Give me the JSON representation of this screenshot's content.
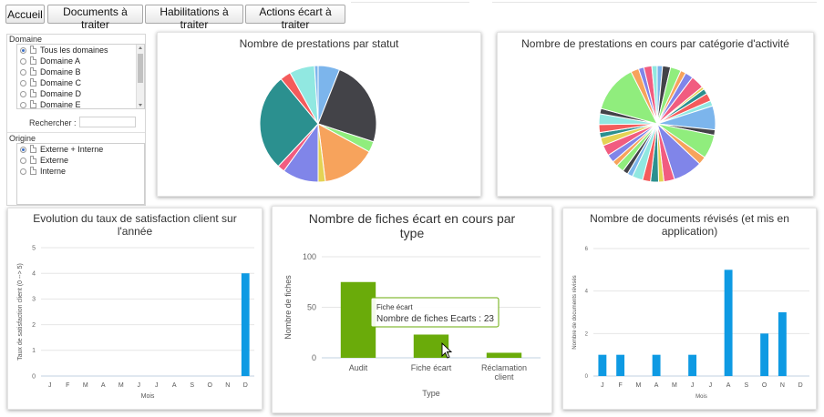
{
  "toolbar": {
    "buttons": [
      "Accueil",
      "Documents à traiter",
      "Habilitations à traiter",
      "Actions écart à traiter"
    ]
  },
  "filters": {
    "domaine_label": "Domaine",
    "domaines": [
      "Tous les domaines",
      "Domaine A",
      "Domaine B",
      "Domaine C",
      "Domaine D",
      "Domaine E"
    ],
    "selected_domaine": "Tous les domaines",
    "search_label": "Rechercher :",
    "search_value": "",
    "origine_label": "Origine",
    "origines": [
      "Externe + Interne",
      "Externe",
      "Interne"
    ],
    "selected_origine": "Externe + Interne"
  },
  "charts": {
    "statut": {
      "title": "Nombre de prestations par statut"
    },
    "categorie": {
      "title": "Nombre de prestations en cours par catégorie d'activité"
    },
    "satisfaction": {
      "title_line1": "Evolution du taux de satisfaction client sur",
      "title_line2": "l'année"
    },
    "fiches": {
      "title_line1": "Nombre de fiches écart en cours par",
      "title_line2": "type",
      "tooltip_header": "Fiche écart",
      "tooltip_body": "Nombre de fiches Ecarts : 23"
    },
    "documents": {
      "title_line1": "Nombre de documents révisés (et mis en",
      "title_line2": "application)"
    }
  },
  "chart_data": [
    {
      "type": "pie",
      "title": "Nombre de prestations par statut",
      "slices": [
        {
          "value": 6,
          "color": "#7cb5ec"
        },
        {
          "value": 24,
          "color": "#434348"
        },
        {
          "value": 3,
          "color": "#90ed7d"
        },
        {
          "value": 15,
          "color": "#f7a35c"
        },
        {
          "value": 2,
          "color": "#e4d354"
        },
        {
          "value": 10,
          "color": "#8085e9"
        },
        {
          "value": 2,
          "color": "#f15c80"
        },
        {
          "value": 27,
          "color": "#2b908f"
        },
        {
          "value": 3,
          "color": "#f45b5b"
        },
        {
          "value": 7,
          "color": "#91e8e1"
        },
        {
          "value": 1,
          "color": "#7cb5ec"
        }
      ]
    },
    {
      "type": "pie",
      "title": "Nombre de prestations en cours par catégorie d'activité",
      "slices": [
        {
          "value": 2,
          "color": "#7cb5ec"
        },
        {
          "value": 3,
          "color": "#434348"
        },
        {
          "value": 4,
          "color": "#90ed7d"
        },
        {
          "value": 2,
          "color": "#f7a35c"
        },
        {
          "value": 3,
          "color": "#8085e9"
        },
        {
          "value": 5,
          "color": "#f15c80"
        },
        {
          "value": 1,
          "color": "#e4d354"
        },
        {
          "value": 2,
          "color": "#2b908f"
        },
        {
          "value": 3,
          "color": "#f45b5b"
        },
        {
          "value": 2,
          "color": "#91e8e1"
        },
        {
          "value": 9,
          "color": "#7cb5ec"
        },
        {
          "value": 2,
          "color": "#434348"
        },
        {
          "value": 9,
          "color": "#90ed7d"
        },
        {
          "value": 3,
          "color": "#f7a35c"
        },
        {
          "value": 11,
          "color": "#8085e9"
        },
        {
          "value": 4,
          "color": "#f15c80"
        },
        {
          "value": 2,
          "color": "#e4d354"
        },
        {
          "value": 3,
          "color": "#2b908f"
        },
        {
          "value": 3,
          "color": "#f45b5b"
        },
        {
          "value": 4,
          "color": "#91e8e1"
        },
        {
          "value": 2,
          "color": "#7cb5ec"
        },
        {
          "value": 2,
          "color": "#434348"
        },
        {
          "value": 3,
          "color": "#90ed7d"
        },
        {
          "value": 2,
          "color": "#f7a35c"
        },
        {
          "value": 3,
          "color": "#8085e9"
        },
        {
          "value": 4,
          "color": "#f15c80"
        },
        {
          "value": 3,
          "color": "#e4d354"
        },
        {
          "value": 2,
          "color": "#2b908f"
        },
        {
          "value": 3,
          "color": "#f45b5b"
        },
        {
          "value": 4,
          "color": "#91e8e1"
        },
        {
          "value": 2,
          "color": "#434348"
        },
        {
          "value": 18,
          "color": "#90ed7d"
        },
        {
          "value": 3,
          "color": "#f7a35c"
        },
        {
          "value": 2,
          "color": "#8085e9"
        },
        {
          "value": 3,
          "color": "#f15c80"
        },
        {
          "value": 2,
          "color": "#91e8e1"
        }
      ]
    },
    {
      "type": "bar",
      "title": "Evolution du taux de satisfaction client sur l'année",
      "categories": [
        "J",
        "F",
        "M",
        "A",
        "M",
        "J",
        "J",
        "A",
        "S",
        "O",
        "N",
        "D"
      ],
      "values": [
        0,
        0,
        0,
        0,
        0,
        0,
        0,
        0,
        0,
        0,
        0,
        4
      ],
      "xlabel": "Mois",
      "ylabel": "Taux de satisfaction client (0 --> 5)",
      "ylim": [
        0,
        5
      ],
      "yticks": [
        0,
        1,
        2,
        3,
        4,
        5
      ],
      "color": "#0e9ae3"
    },
    {
      "type": "bar",
      "title": "Nombre de fiches écart en cours par type",
      "categories": [
        "Audit",
        "Fiche écart",
        "Réclamation client"
      ],
      "values": [
        75,
        23,
        5
      ],
      "xlabel": "Type",
      "ylabel": "Nombre de fiches",
      "ylim": [
        0,
        100
      ],
      "yticks": [
        0,
        50,
        100
      ],
      "color": "#6aab0a"
    },
    {
      "type": "bar",
      "title": "Nombre de documents révisés (et mis en application)",
      "categories": [
        "J",
        "F",
        "M",
        "A",
        "M",
        "J",
        "J",
        "A",
        "S",
        "O",
        "N",
        "D"
      ],
      "values": [
        1,
        1,
        0,
        1,
        0,
        1,
        0,
        5,
        0,
        2,
        3,
        0
      ],
      "xlabel": "Mois",
      "ylabel": "Nombre de documents révisés",
      "ylim": [
        0,
        6
      ],
      "yticks": [
        0,
        2,
        4,
        6
      ],
      "color": "#0e9ae3"
    }
  ]
}
